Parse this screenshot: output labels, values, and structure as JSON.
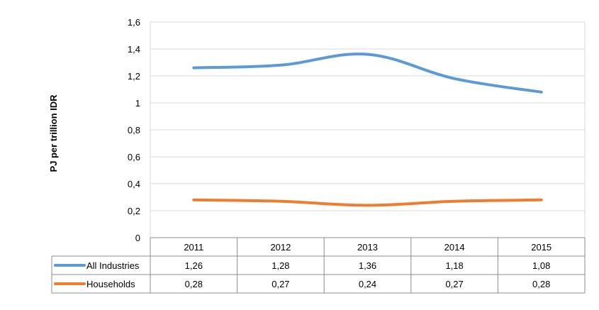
{
  "chart_data": {
    "type": "line",
    "ylabel": "PJ per trillion IDR",
    "xlabel": "",
    "title": "",
    "categories": [
      "2011",
      "2012",
      "2013",
      "2014",
      "2015"
    ],
    "ylim": [
      0,
      1.6
    ],
    "yticks": [
      "0",
      "0,2",
      "0,4",
      "0,6",
      "0,8",
      "1",
      "1,2",
      "1,4",
      "1,6"
    ],
    "ytick_values": [
      0,
      0.2,
      0.4,
      0.6,
      0.8,
      1.0,
      1.2,
      1.4,
      1.6
    ],
    "grid": true,
    "legend": "data-table",
    "series": [
      {
        "name": "All Industries",
        "color": "#5B9BD5",
        "values": [
          1.26,
          1.28,
          1.36,
          1.18,
          1.08
        ],
        "labels": [
          "1,26",
          "1,28",
          "1,36",
          "1,18",
          "1,08"
        ]
      },
      {
        "name": "Households",
        "color": "#ED7D31",
        "values": [
          0.28,
          0.27,
          0.24,
          0.27,
          0.28
        ],
        "labels": [
          "0,28",
          "0,27",
          "0,24",
          "0,27",
          "0,28"
        ]
      }
    ]
  }
}
